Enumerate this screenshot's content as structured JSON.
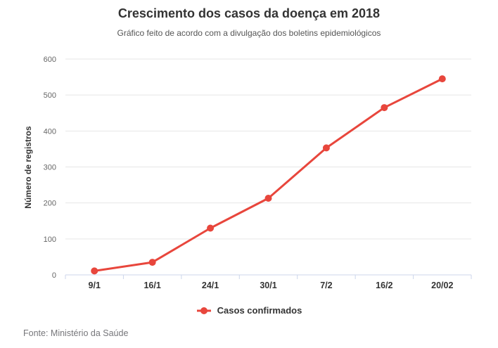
{
  "chart_data": {
    "type": "line",
    "title": "Crescimento dos casos da doença em 2018",
    "subtitle": "Gráfico feito de acordo com a divulgação dos boletins epidemiológicos",
    "ylabel": "Número de registros",
    "xlabel": "",
    "categories": [
      "9/1",
      "16/1",
      "24/1",
      "30/1",
      "7/2",
      "16/2",
      "20/02"
    ],
    "series": [
      {
        "name": "Casos confirmados",
        "values": [
          11,
          35,
          130,
          213,
          353,
          465,
          545
        ],
        "color": "#e8463c"
      }
    ],
    "ylim": [
      0,
      600
    ],
    "ytick_interval": 100,
    "grid": true,
    "legend_position": "bottom"
  },
  "footer": {
    "source": "Fonte: Ministério da Saúde"
  }
}
